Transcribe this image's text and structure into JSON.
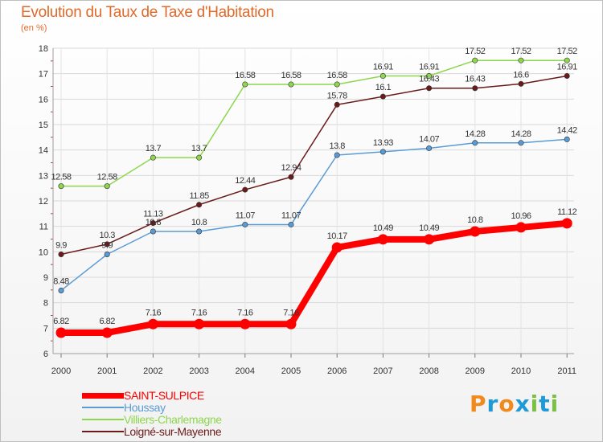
{
  "title": "Evolution du Taux de Taxe d'Habitation",
  "subtitle": "(en %)",
  "logo": {
    "text": "Proxiti",
    "letters": [
      "P",
      "r",
      "o",
      "x",
      "i",
      "t",
      "i"
    ],
    "colors": [
      "#f08a1c",
      "#1e9ad6",
      "#f08a1c",
      "#1e9ad6",
      "#7ac143",
      "#1e9ad6",
      "#7ac143"
    ]
  },
  "chart_data": {
    "type": "line",
    "x": [
      "2000",
      "2001",
      "2002",
      "2003",
      "2004",
      "2005",
      "2006",
      "2007",
      "2008",
      "2009",
      "2010",
      "2011"
    ],
    "ylim": [
      6,
      18
    ],
    "yticks": [
      "6",
      "7",
      "8",
      "9",
      "10",
      "11",
      "12",
      "13",
      "14",
      "15",
      "16",
      "17",
      "18"
    ],
    "grid": true,
    "legend": "bottom-left",
    "series": [
      {
        "name": "Villiers-Charlemagne",
        "color": "#8ed64e",
        "values": [
          12.58,
          12.58,
          13.7,
          13.7,
          16.58,
          16.58,
          16.58,
          16.91,
          16.91,
          17.52,
          17.52,
          17.52
        ],
        "labels": [
          "12.58",
          "12.58",
          "13.7",
          "13.7",
          "16.58",
          "16.58",
          "16.58",
          "16.91",
          "16.91",
          "17.52",
          "17.52",
          "17.52"
        ]
      },
      {
        "name": "Loigné-sur-Mayenne",
        "color": "#6b1a1a",
        "values": [
          9.9,
          10.3,
          11.13,
          11.85,
          12.44,
          12.94,
          15.78,
          16.1,
          16.43,
          16.43,
          16.6,
          16.91
        ],
        "labels": [
          "9.9",
          "10.3",
          "11.13",
          "11.85",
          "12.44",
          "12.94",
          "15.78",
          "16.1",
          "16.43",
          "16.43",
          "16.6",
          "16.91"
        ]
      },
      {
        "name": "Houssay",
        "color": "#5b9bd5",
        "values": [
          8.48,
          9.9,
          10.8,
          10.8,
          11.07,
          11.07,
          13.8,
          13.93,
          14.07,
          14.28,
          14.28,
          14.42
        ],
        "labels": [
          "8.48",
          "9.9",
          "10.8",
          "10.8",
          "11.07",
          "11.07",
          "13.8",
          "13.93",
          "14.07",
          "14.28",
          "14.28",
          "14.42"
        ]
      },
      {
        "name": "SAINT-SULPICE",
        "color": "#ff0000",
        "values": [
          6.82,
          6.82,
          7.16,
          7.16,
          7.16,
          7.16,
          10.17,
          10.49,
          10.49,
          10.8,
          10.96,
          11.12
        ],
        "labels": [
          "6.82",
          "6.82",
          "7.16",
          "7.16",
          "7.16",
          "7.16",
          "10.17",
          "10.49",
          "10.49",
          "10.8",
          "10.96",
          "11.12"
        ]
      }
    ]
  },
  "legend": {
    "items": [
      {
        "name": "SAINT-SULPICE",
        "color": "#ff0000"
      },
      {
        "name": "Houssay",
        "color": "#5b9bd5"
      },
      {
        "name": "Villiers-Charlemagne",
        "color": "#8ed64e"
      },
      {
        "name": "Loigné-sur-Mayenne",
        "color": "#6b1a1a"
      }
    ]
  }
}
